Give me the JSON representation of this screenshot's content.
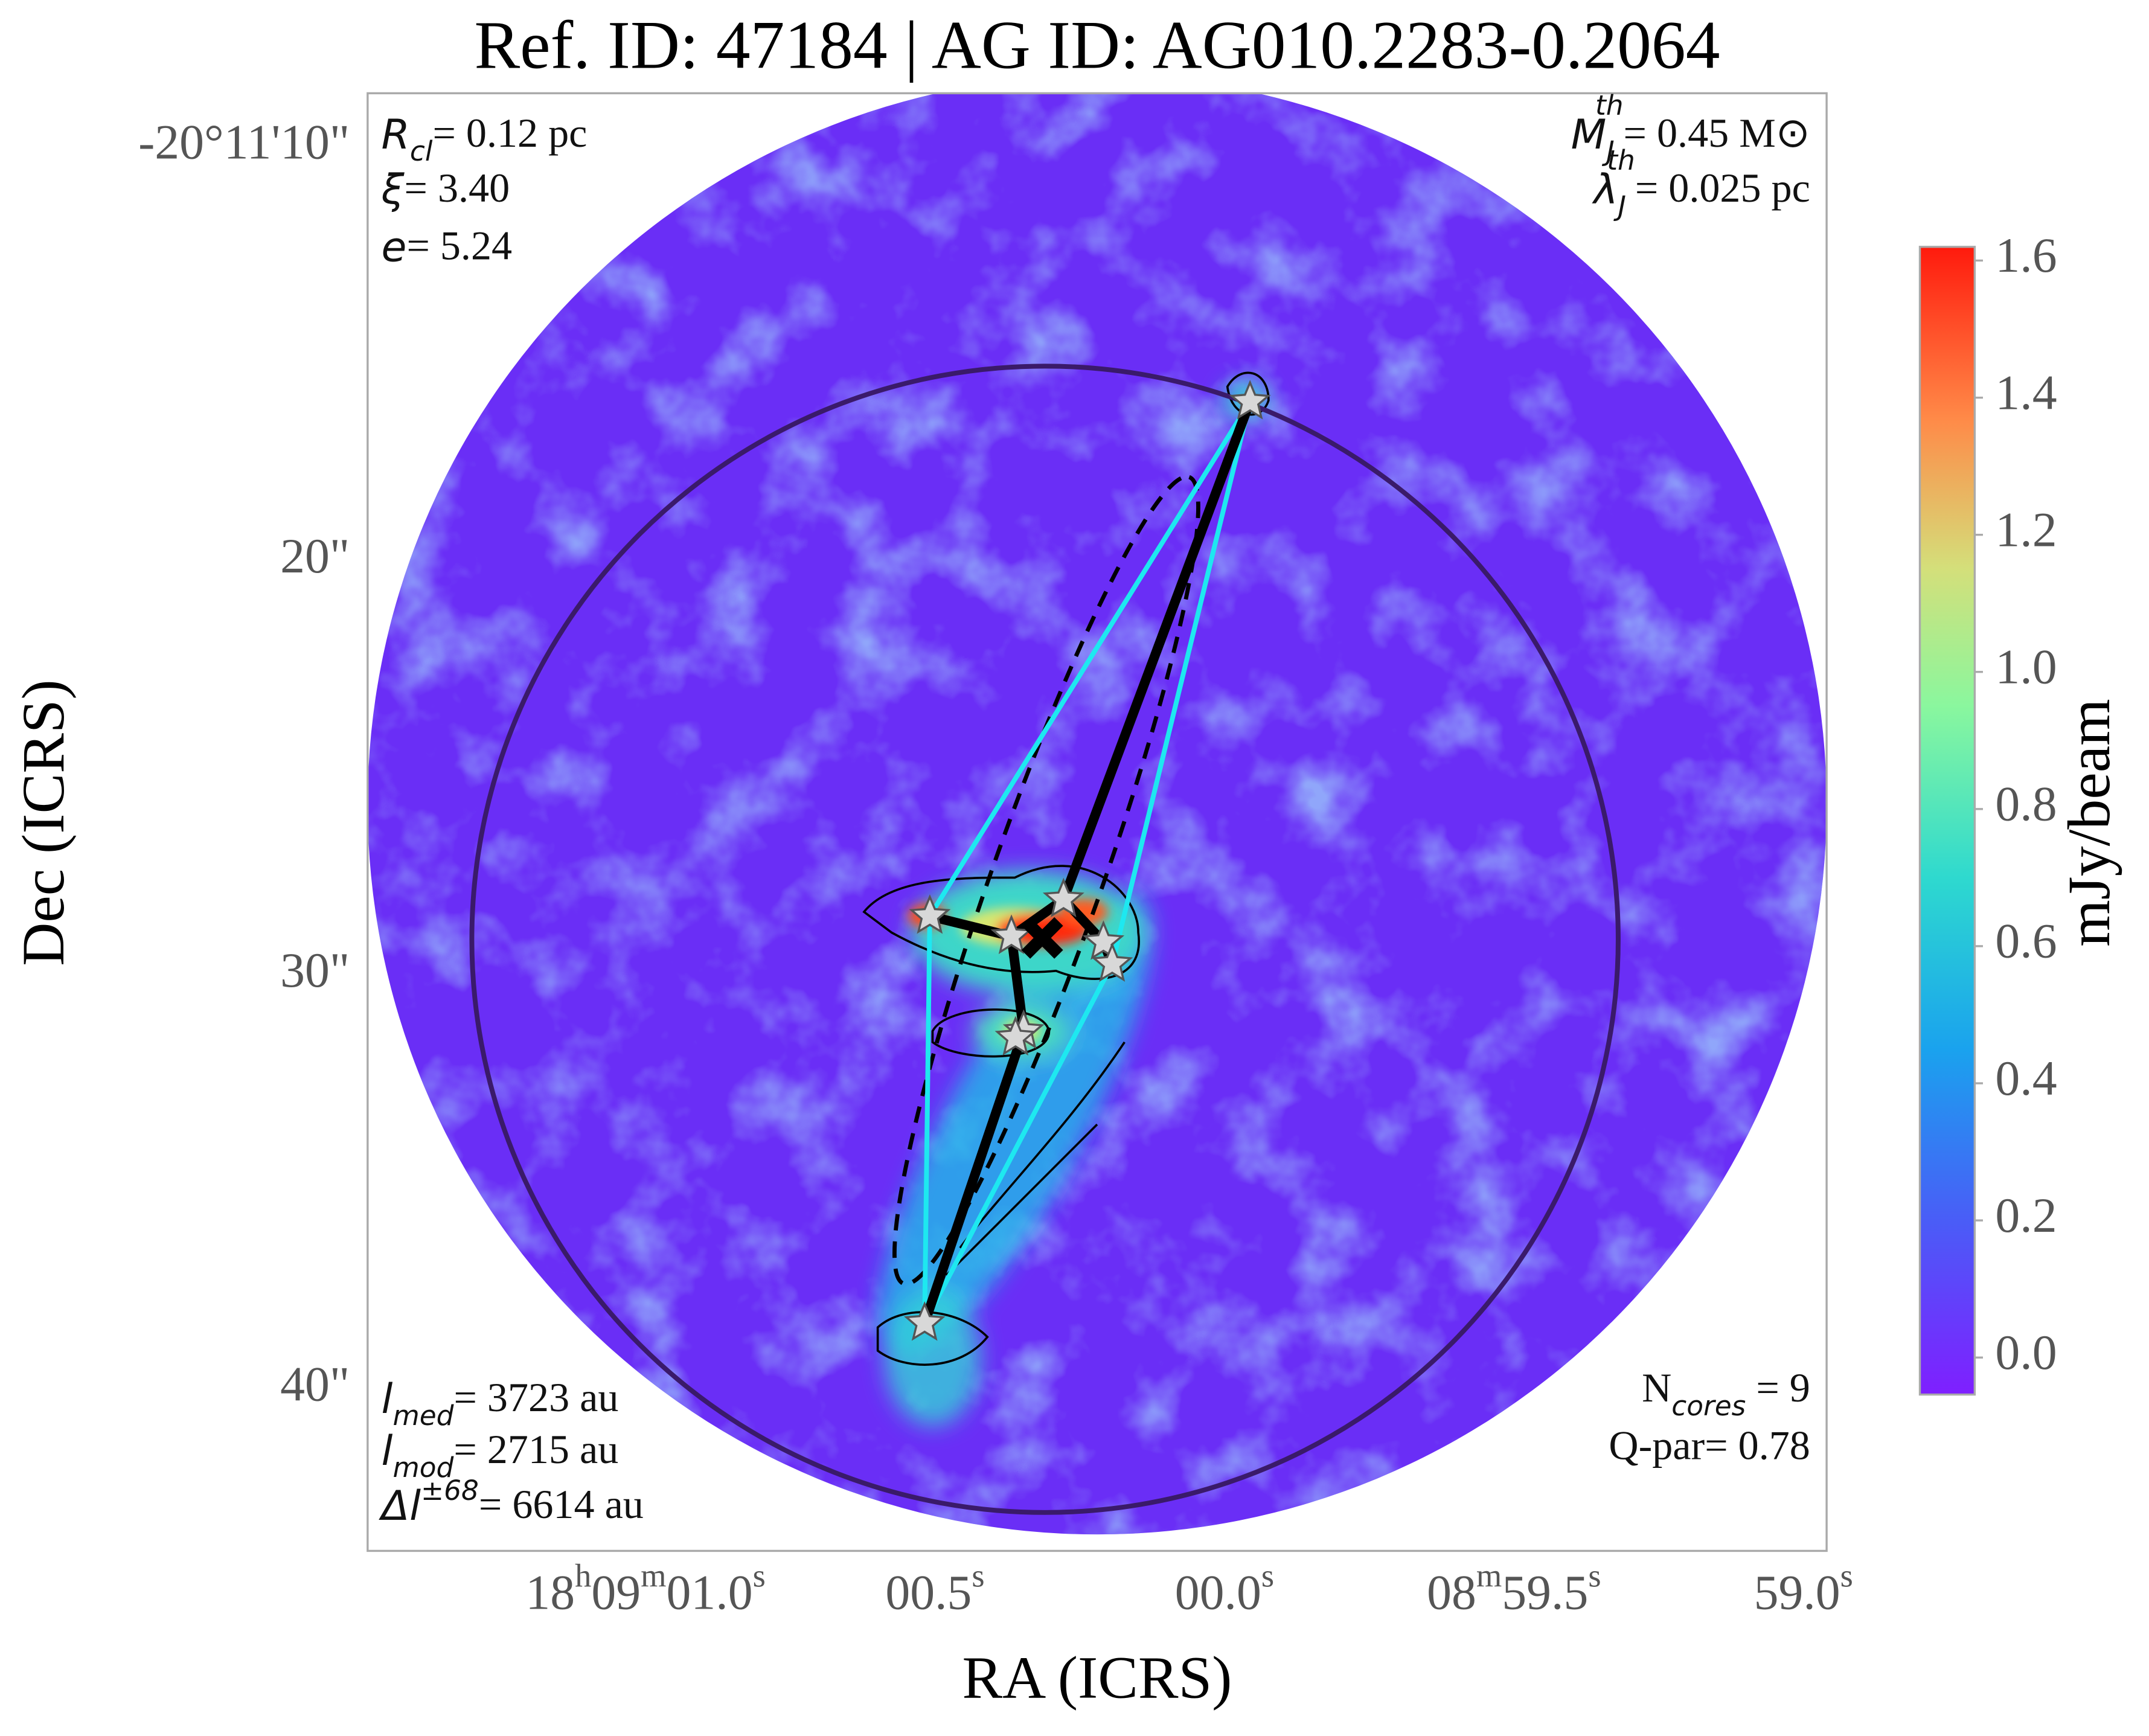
{
  "chart_data": {
    "type": "image",
    "title": "Ref. ID: 47184 | AG ID: AG010.2283-0.2064",
    "x_label": "RA (ICRS)",
    "y_label": "Dec (ICRS)",
    "xlim": [
      61.48,
      58.96
    ],
    "xticks": [
      {
        "value": 61.0,
        "label": "18h09m01.0s"
      },
      {
        "value": 60.5,
        "label": "00.5s"
      },
      {
        "value": 60.0,
        "label": "00.0s"
      },
      {
        "value": 59.5,
        "label": "08m59.5s"
      },
      {
        "value": 59.0,
        "label": "59.0s"
      }
    ],
    "ylim": [
      43.9,
      8.7
    ],
    "yticks": [
      {
        "value": 10,
        "label": "-20°11'10\""
      },
      {
        "value": 20,
        "label": "20\""
      },
      {
        "value": 30,
        "label": "30\""
      },
      {
        "value": 40,
        "label": "40\""
      }
    ],
    "colorbar": {
      "label": "mJy/beam",
      "lim": [
        -0.054,
        1.62
      ],
      "ticks": [
        {
          "value": 0,
          "label": "0.0"
        },
        0.2,
        0.4,
        0.6,
        0.8,
        {
          "value": 1,
          "label": "1.0"
        },
        1.2,
        1.4,
        1.6
      ]
    },
    "cores": {
      "x": [
        59.956,
        60.509,
        60.368,
        60.278,
        60.209,
        60.194,
        60.347,
        60.361,
        60.518
      ],
      "y": [
        16.15,
        28.57,
        29.06,
        28.17,
        29.2,
        29.73,
        31.35,
        31.51,
        38.4
      ]
    },
    "mst_edges": [
      [
        0,
        3
      ],
      [
        3,
        2
      ],
      [
        2,
        1
      ],
      [
        3,
        4
      ],
      [
        2,
        6
      ],
      [
        6,
        8
      ],
      [
        4,
        5
      ],
      [
        6,
        7
      ]
    ],
    "hull": [
      0,
      1,
      8,
      5
    ],
    "annotations": {
      "top_left": [
        {
          "symbol": "R",
          "sub": "cl",
          "text": "= 0.12 pc"
        },
        {
          "symbol": "ξ",
          "text": "= 3.40"
        },
        {
          "symbol": "e",
          "text": "= 5.24"
        }
      ],
      "top_right": [
        {
          "symbol": "M",
          "sub": "J",
          "sup": "th",
          "text": "= 0.45 M⊙"
        },
        {
          "symbol": "λ",
          "sub": "J",
          "sup": "th",
          "text": "= 0.025 pc"
        }
      ],
      "bottom_left": [
        {
          "symbol": "l",
          "sub": "med",
          "text": "= 3723 au"
        },
        {
          "symbol": "l",
          "sub": "mod",
          "text": "= 2715 au"
        },
        {
          "symbol": "Δl",
          "sup": "±68",
          "text": "= 6614 au"
        }
      ],
      "bottom_right": [
        {
          "text": "N",
          "sub": "cores",
          "text2": " = 9"
        },
        {
          "text": "Q-par= 0.78"
        }
      ]
    }
  }
}
